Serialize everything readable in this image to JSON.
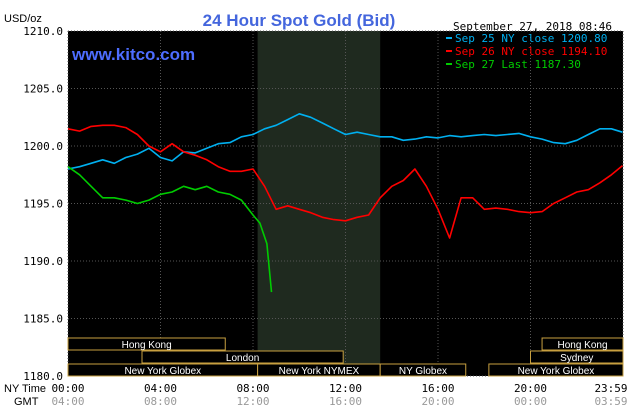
{
  "chart_data": {
    "type": "line",
    "title": "24 Hour Spot Gold (Bid)",
    "watermark": "www.kitco.com",
    "unit_label": "USD/oz",
    "timestamp": "September 27, 2018 08:46",
    "ylim": [
      1180,
      1210
    ],
    "y_ticks": [
      "1210.0",
      "1205.0",
      "1200.0",
      "1195.0",
      "1190.0",
      "1185.0",
      "1180.0"
    ],
    "x_tick_labels_ny": [
      "00:00",
      "04:00",
      "08:00",
      "12:00",
      "16:00",
      "20:00",
      "23:59"
    ],
    "x_tick_labels_gmt": [
      "04:00",
      "08:00",
      "12:00",
      "16:00",
      "20:00",
      "00:00",
      "03:59"
    ],
    "x_row_labels": [
      "NY Time",
      "GMT"
    ],
    "legend_placement": "top-right",
    "shaded_session": {
      "start_hour": 8.2,
      "end_hour": 13.5
    },
    "markets": [
      {
        "label": "Hong Kong",
        "row": 0,
        "start": 0,
        "end": 6.8
      },
      {
        "label": "Hong Kong",
        "row": 0,
        "end": 24,
        "start": 20.5
      },
      {
        "label": "London",
        "row": 1,
        "start": 3.2,
        "end": 11.9
      },
      {
        "label": "Sydney",
        "row": 1,
        "start": 20.0,
        "end": 24
      },
      {
        "label": "New York Globex",
        "row": 2,
        "start": 0,
        "end": 8.2
      },
      {
        "label": "New York NYMEX",
        "row": 2,
        "start": 8.2,
        "end": 13.5
      },
      {
        "label": "NY Globex",
        "row": 2,
        "start": 13.5,
        "end": 17.2
      },
      {
        "label": "New York Globex",
        "row": 2,
        "start": 18.2,
        "end": 24
      }
    ],
    "series": [
      {
        "name": "Sep 25 NY close 1200.80",
        "color": "#00b0f0",
        "x": [
          0,
          0.5,
          1,
          1.5,
          2,
          2.5,
          3,
          3.5,
          4,
          4.5,
          5,
          5.5,
          6,
          6.5,
          7,
          7.5,
          8,
          8.5,
          9,
          9.5,
          10,
          10.5,
          11,
          11.5,
          12,
          12.5,
          13,
          13.5,
          14,
          14.5,
          15,
          15.5,
          16,
          16.5,
          17,
          17.5,
          18,
          18.5,
          19,
          19.5,
          20,
          20.5,
          21,
          21.5,
          22,
          22.5,
          23,
          23.5,
          23.98
        ],
        "y": [
          1198,
          1198.2,
          1198.5,
          1198.8,
          1198.5,
          1199,
          1199.3,
          1199.8,
          1199,
          1198.7,
          1199.5,
          1199.4,
          1199.8,
          1200.2,
          1200.3,
          1200.8,
          1201,
          1201.5,
          1201.8,
          1202.3,
          1202.8,
          1202.5,
          1202,
          1201.5,
          1201,
          1201.2,
          1201,
          1200.8,
          1200.8,
          1200.5,
          1200.6,
          1200.8,
          1200.7,
          1200.9,
          1200.8,
          1200.9,
          1201.0,
          1200.9,
          1201.0,
          1201.1,
          1200.8,
          1200.6,
          1200.3,
          1200.2,
          1200.5,
          1201,
          1201.5,
          1201.5,
          1201.2
        ]
      },
      {
        "name": "Sep 26 NY close 1194.10",
        "color": "#ff0000",
        "x": [
          0,
          0.5,
          1,
          1.5,
          2,
          2.5,
          3,
          3.5,
          4,
          4.5,
          5,
          5.5,
          6,
          6.5,
          7,
          7.5,
          8,
          8.5,
          9,
          9.5,
          10,
          10.5,
          11,
          11.5,
          12,
          12.5,
          13,
          13.5,
          14,
          14.5,
          15,
          15.5,
          16,
          16.5,
          17,
          17.5,
          18,
          18.5,
          19,
          19.5,
          20,
          20.5,
          21,
          21.5,
          22,
          22.5,
          23,
          23.5,
          23.98
        ],
        "y": [
          1201.5,
          1201.3,
          1201.7,
          1201.8,
          1201.8,
          1201.6,
          1201,
          1200,
          1199.5,
          1200.2,
          1199.5,
          1199.2,
          1198.8,
          1198.2,
          1197.8,
          1197.8,
          1198,
          1196.5,
          1194.5,
          1194.8,
          1194.5,
          1194.2,
          1193.8,
          1193.6,
          1193.5,
          1193.8,
          1194,
          1195.5,
          1196.5,
          1197,
          1198,
          1196.5,
          1194.5,
          1192,
          1195.5,
          1195.5,
          1194.5,
          1194.6,
          1194.5,
          1194.3,
          1194.2,
          1194.3,
          1195,
          1195.5,
          1196,
          1196.2,
          1196.8,
          1197.5,
          1198.3
        ]
      },
      {
        "name": "Sep 27 Last 1187.30",
        "color": "#00cc00",
        "x": [
          0,
          0.5,
          1,
          1.5,
          2,
          2.5,
          3,
          3.5,
          4,
          4.5,
          5,
          5.5,
          6,
          6.5,
          7,
          7.5,
          8,
          8.3,
          8.6,
          8.8
        ],
        "y": [
          1198.2,
          1197.5,
          1196.5,
          1195.5,
          1195.5,
          1195.3,
          1195.0,
          1195.3,
          1195.8,
          1196.0,
          1196.5,
          1196.2,
          1196.5,
          1196.0,
          1195.8,
          1195.3,
          1194.0,
          1193.3,
          1191.5,
          1187.3
        ]
      }
    ]
  }
}
